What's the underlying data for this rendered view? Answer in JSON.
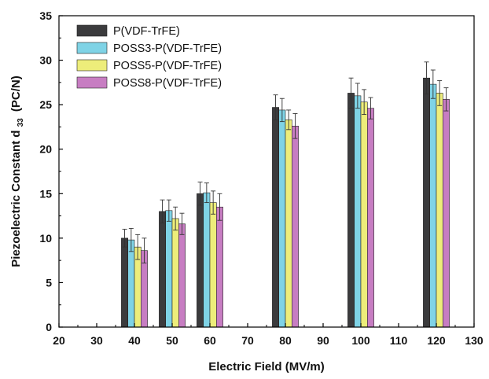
{
  "chart_data": {
    "type": "bar",
    "xlabel": "Electric Field (MV/m)",
    "ylabel_main": "Piezoelectric Constant d",
    "ylabel_sub": "33",
    "ylabel_unit": "(PC/N)",
    "xlim": [
      20,
      130
    ],
    "ylim": [
      0,
      35
    ],
    "xticks": [
      20,
      30,
      40,
      50,
      60,
      70,
      80,
      90,
      100,
      110,
      120,
      130
    ],
    "yticks": [
      0,
      5,
      10,
      15,
      20,
      25,
      30,
      35
    ],
    "legend_position": "top-left",
    "categories": [
      40,
      50,
      60,
      80,
      100,
      120
    ],
    "series": [
      {
        "name": "P(VDF-TrFE)",
        "color": "#3b3b3d",
        "values": [
          10.0,
          13.0,
          15.0,
          24.7,
          26.3,
          28.0
        ],
        "errors": [
          1.0,
          1.3,
          1.3,
          1.4,
          1.7,
          1.8
        ]
      },
      {
        "name": "POSS3-P(VDF-TrFE)",
        "color": "#7fd3e6",
        "values": [
          9.8,
          13.1,
          15.1,
          24.4,
          26.0,
          27.3
        ],
        "errors": [
          1.3,
          1.2,
          1.1,
          1.3,
          1.4,
          1.6
        ]
      },
      {
        "name": "POSS5-P(VDF-TrFE)",
        "color": "#eded7a",
        "values": [
          9.0,
          12.2,
          14.0,
          23.3,
          25.3,
          26.3
        ],
        "errors": [
          1.4,
          1.3,
          1.3,
          1.1,
          1.4,
          1.4
        ]
      },
      {
        "name": "POSS8-P(VDF-TrFE)",
        "color": "#c77dc2",
        "values": [
          8.6,
          11.6,
          13.5,
          22.6,
          24.6,
          25.6
        ],
        "errors": [
          1.4,
          1.2,
          1.5,
          1.4,
          1.2,
          1.3
        ]
      }
    ]
  }
}
